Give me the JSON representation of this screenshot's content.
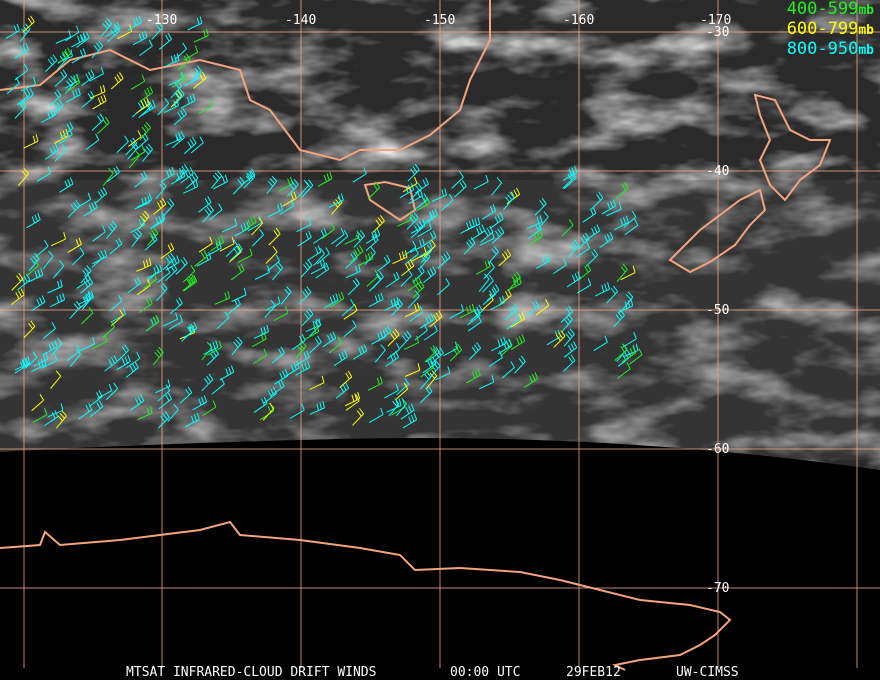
{
  "legend": [
    {
      "range": "400-599",
      "unit": "mb",
      "color": "#22ee22"
    },
    {
      "range": "600-799",
      "unit": "mb",
      "color": "#ffff00"
    },
    {
      "range": "800-950",
      "unit": "mb",
      "color": "#00ffff"
    }
  ],
  "longitude_labels": [
    "-130",
    "-140",
    "-150",
    "-160",
    "-170"
  ],
  "latitude_labels": [
    "-30",
    "-40",
    "-50",
    "-60",
    "-70"
  ],
  "footer": {
    "product": "MTSAT INFRARED-CLOUD DRIFT WINDS",
    "time": "00:00 UTC",
    "date": "29FEB12",
    "source": "UW-CIMSS"
  },
  "colors": {
    "coastline": "#f4a47c",
    "grid": "#f0a888",
    "background": "#000000"
  }
}
